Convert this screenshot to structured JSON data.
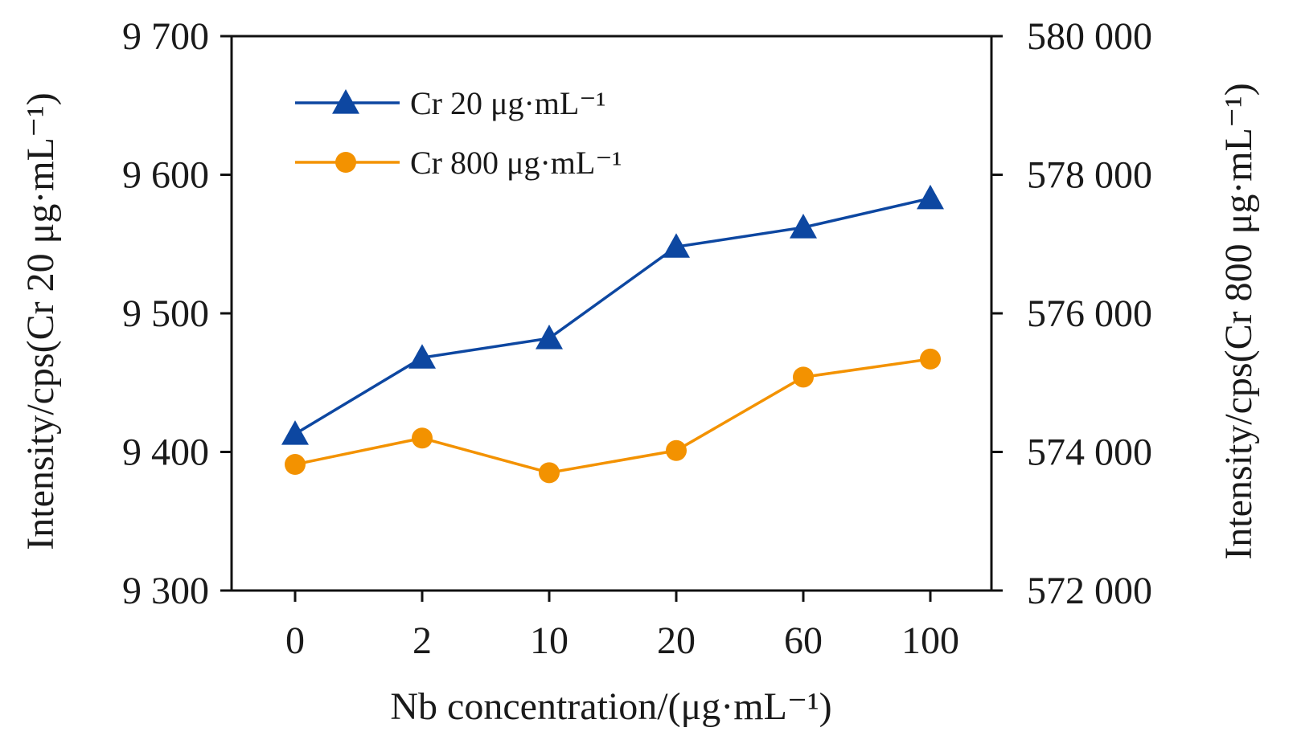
{
  "chart_data": {
    "type": "line",
    "x_scale": "categorical",
    "categories": [
      "0",
      "2",
      "10",
      "20",
      "60",
      "100"
    ],
    "xlabel": "Nb concentration/(μg·mL⁻¹)",
    "ylabel_left": "Intensity/cps(Cr 20 μg·mL⁻¹)",
    "ylabel_right": "Intensity/cps(Cr 800 μg·mL⁻¹)",
    "ylim_left": [
      9300,
      9700
    ],
    "yticks_left": [
      "9 300",
      "9 400",
      "9 500",
      "9 600",
      "9 700"
    ],
    "ylim_right": [
      572000,
      580000
    ],
    "yticks_right": [
      "572 000",
      "574 000",
      "576 000",
      "578 000",
      "580 000"
    ],
    "grid": false,
    "legend": "top-left",
    "series": [
      {
        "name": "Cr 20 μg·mL⁻¹",
        "axis": "left",
        "marker": "triangle",
        "color": "#0d47a1",
        "values": [
          9413,
          9468,
          9482,
          9548,
          9562,
          9583
        ]
      },
      {
        "name": "Cr  800 μg·mL⁻¹",
        "axis": "right",
        "marker": "circle",
        "color": "#f39200",
        "values": [
          573820,
          574200,
          573700,
          574020,
          575080,
          575340
        ]
      }
    ]
  }
}
